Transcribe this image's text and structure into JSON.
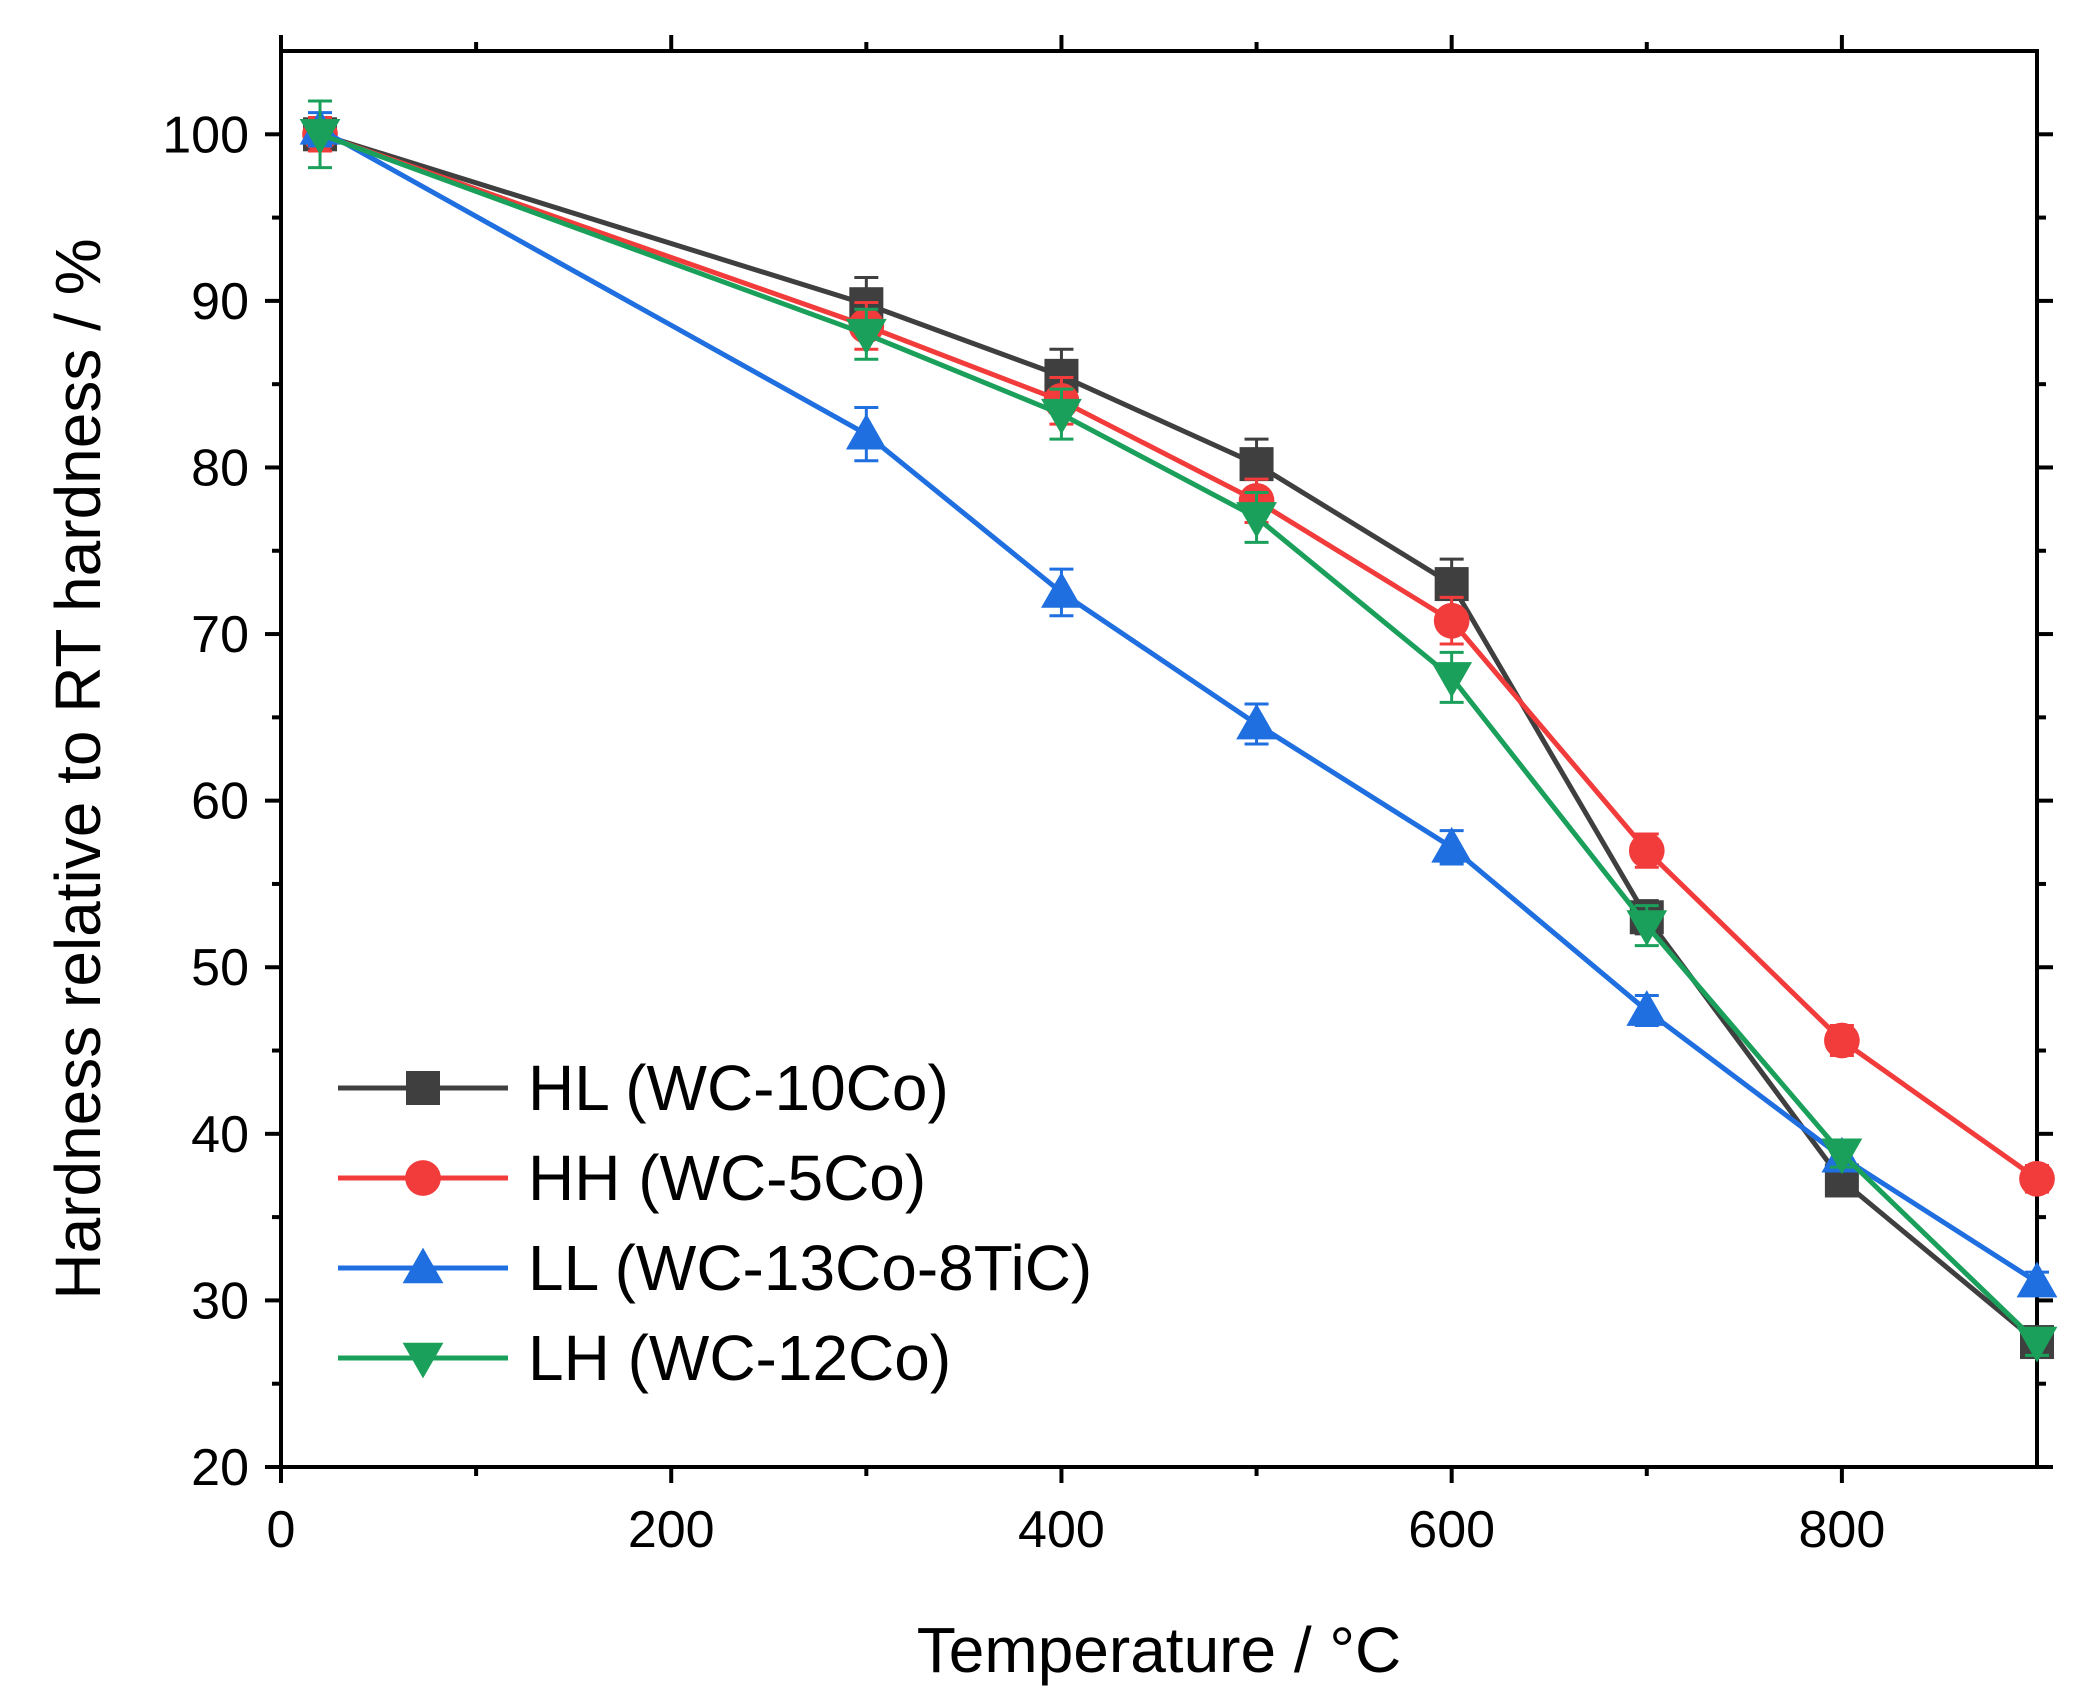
{
  "chart_data": {
    "type": "line",
    "title": "",
    "xlabel": "Temperature / °C",
    "ylabel": "Hardness relative to RT hardness / %",
    "xlim": [
      0,
      900
    ],
    "ylim": [
      20,
      105
    ],
    "x_ticks": [
      0,
      200,
      400,
      600,
      800
    ],
    "x_tick_labels": [
      "0",
      "200",
      "400",
      "600",
      "800"
    ],
    "x_minor_ticks": [
      100,
      300,
      500,
      700
    ],
    "y_ticks": [
      20,
      30,
      40,
      50,
      60,
      70,
      80,
      90,
      100
    ],
    "y_tick_labels": [
      "20",
      "30",
      "40",
      "50",
      "60",
      "70",
      "80",
      "90",
      "100"
    ],
    "grid": false,
    "legend_position": "bottom-left",
    "series": [
      {
        "name": "HL (WC-10Co)",
        "color": "#3f3f3f",
        "marker": "square",
        "x": [
          20,
          300,
          400,
          500,
          600,
          700,
          800,
          900
        ],
        "values": [
          100,
          89.8,
          85.5,
          80.2,
          73.0,
          53.0,
          37.2,
          27.5
        ],
        "errors": [
          1.0,
          1.6,
          1.6,
          1.5,
          1.5,
          1.0,
          0.8,
          0.8
        ]
      },
      {
        "name": "HH (WC-5Co)",
        "color": "#f23c3c",
        "marker": "circle",
        "x": [
          20,
          300,
          400,
          500,
          600,
          700,
          800,
          900
        ],
        "values": [
          100,
          88.5,
          84.0,
          78.0,
          70.8,
          57.0,
          45.6,
          37.3
        ],
        "errors": [
          1.0,
          1.4,
          1.4,
          1.3,
          1.4,
          1.0,
          0.9,
          0.8
        ]
      },
      {
        "name": "LL (WC-13Co-8TiC)",
        "color": "#1f6fe0",
        "marker": "triangle-up",
        "x": [
          20,
          300,
          400,
          500,
          600,
          700,
          800,
          900
        ],
        "values": [
          100.3,
          82.0,
          72.5,
          64.6,
          57.2,
          47.4,
          38.6,
          31.1
        ],
        "errors": [
          1.0,
          1.6,
          1.4,
          1.2,
          1.0,
          0.9,
          0.7,
          0.6
        ]
      },
      {
        "name": "LH (WC-12Co)",
        "color": "#1aa05a",
        "marker": "triangle-down",
        "x": [
          20,
          300,
          400,
          500,
          600,
          700,
          800,
          900
        ],
        "values": [
          100,
          88.0,
          83.2,
          77.0,
          67.4,
          52.5,
          38.8,
          27.5
        ],
        "errors": [
          2.0,
          1.5,
          1.5,
          1.5,
          1.5,
          1.2,
          0.8,
          0.8
        ]
      }
    ]
  }
}
